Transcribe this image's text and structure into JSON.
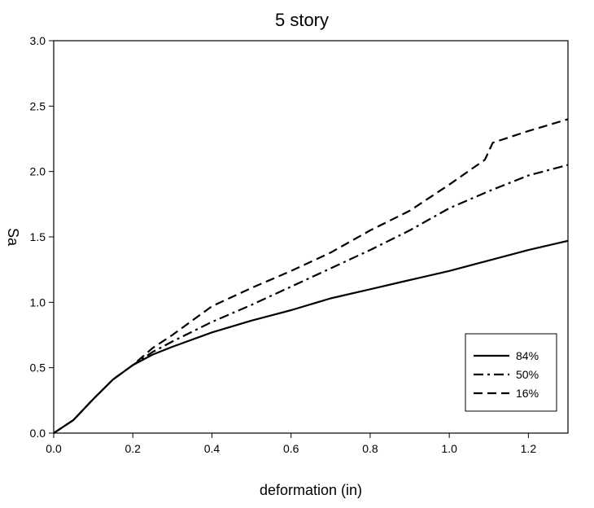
{
  "chart_data": {
    "type": "line",
    "title": "5 story",
    "xlabel": "deformation (in)",
    "ylabel": "Sa",
    "xlim": [
      0,
      1.3
    ],
    "ylim": [
      0,
      3.0
    ],
    "x_ticks": [
      "0.0",
      "0.2",
      "0.4",
      "0.6",
      "0.8",
      "1.0",
      "1.2"
    ],
    "y_ticks": [
      "0.0",
      "0.5",
      "1.0",
      "1.5",
      "2.0",
      "2.5",
      "3.0"
    ],
    "grid": false,
    "legend_position": "bottom-right",
    "series": [
      {
        "name": "84%",
        "style": "solid",
        "x": [
          0,
          0.05,
          0.1,
          0.15,
          0.2,
          0.25,
          0.3,
          0.4,
          0.5,
          0.6,
          0.7,
          0.8,
          0.9,
          1.0,
          1.1,
          1.2,
          1.3
        ],
        "y": [
          0,
          0.1,
          0.26,
          0.41,
          0.52,
          0.6,
          0.66,
          0.77,
          0.86,
          0.94,
          1.03,
          1.1,
          1.17,
          1.24,
          1.32,
          1.4,
          1.47
        ]
      },
      {
        "name": "50%",
        "style": "dash-dot",
        "x": [
          0,
          0.05,
          0.1,
          0.15,
          0.2,
          0.25,
          0.3,
          0.4,
          0.5,
          0.6,
          0.7,
          0.8,
          0.9,
          1.0,
          1.1,
          1.2,
          1.3
        ],
        "y": [
          0,
          0.1,
          0.26,
          0.41,
          0.52,
          0.62,
          0.7,
          0.85,
          0.98,
          1.12,
          1.26,
          1.4,
          1.55,
          1.72,
          1.85,
          1.97,
          2.05
        ]
      },
      {
        "name": "16%",
        "style": "dashed",
        "x": [
          0,
          0.05,
          0.1,
          0.15,
          0.2,
          0.25,
          0.3,
          0.4,
          0.5,
          0.6,
          0.7,
          0.8,
          0.9,
          1.0,
          1.09,
          1.11,
          1.2,
          1.3
        ],
        "y": [
          0,
          0.1,
          0.26,
          0.41,
          0.52,
          0.65,
          0.75,
          0.97,
          1.11,
          1.24,
          1.38,
          1.55,
          1.7,
          1.9,
          2.09,
          2.22,
          2.31,
          2.4
        ]
      }
    ]
  }
}
